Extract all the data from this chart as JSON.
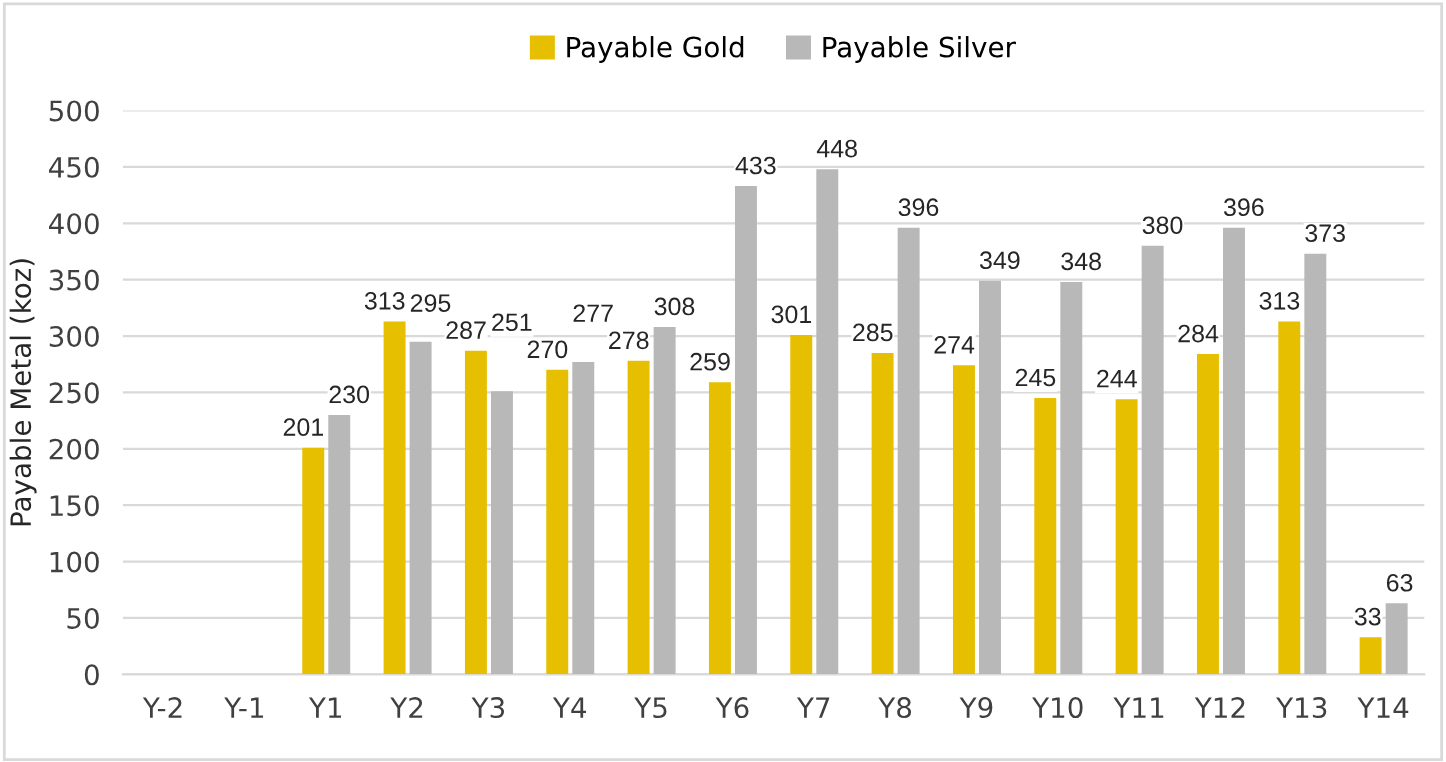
{
  "chart_data": {
    "type": "bar",
    "ylabel": "Payable Metal (koz)",
    "categories": [
      "Y-2",
      "Y-1",
      "Y1",
      "Y2",
      "Y3",
      "Y4",
      "Y5",
      "Y6",
      "Y7",
      "Y8",
      "Y9",
      "Y10",
      "Y11",
      "Y12",
      "Y13",
      "Y14"
    ],
    "series": [
      {
        "name": "Payable Gold",
        "color": "#e6c000",
        "values": [
          null,
          null,
          201,
          313,
          287,
          270,
          278,
          259,
          301,
          285,
          274,
          245,
          244,
          284,
          313,
          33
        ]
      },
      {
        "name": "Payable Silver",
        "color": "#b8b8b8",
        "values": [
          null,
          null,
          230,
          295,
          251,
          277,
          308,
          433,
          448,
          396,
          349,
          348,
          380,
          396,
          373,
          63
        ]
      }
    ],
    "ylim": [
      0,
      500
    ],
    "yticks": [
      0,
      50,
      100,
      150,
      200,
      250,
      300,
      350,
      400,
      450,
      500
    ],
    "grid": "y",
    "legend": "top",
    "data_labels": true
  }
}
